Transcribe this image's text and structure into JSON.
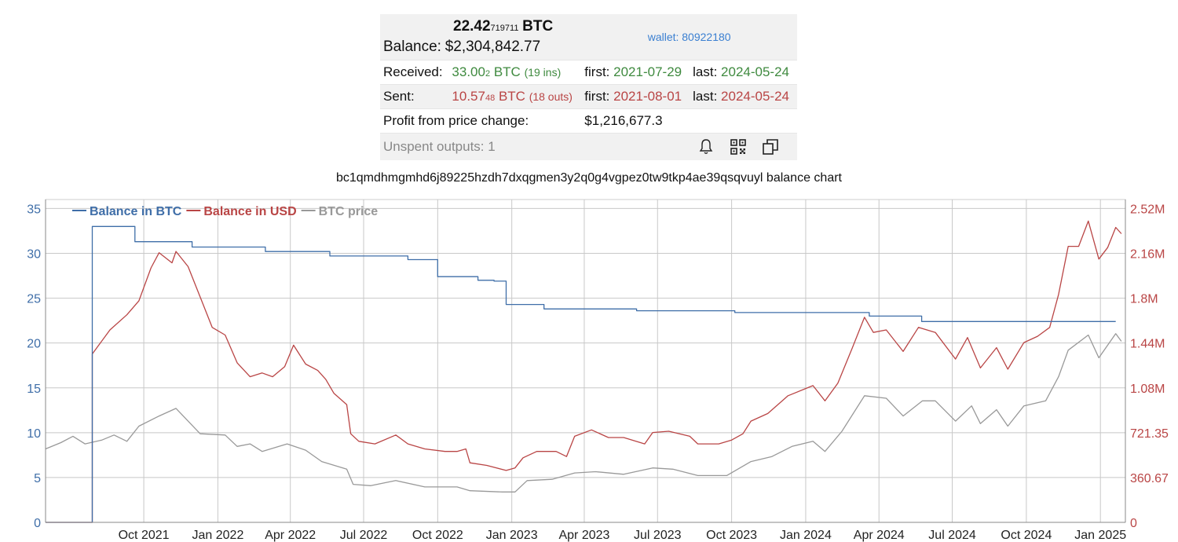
{
  "wallet_info": {
    "balance_btc_main": "22.42",
    "balance_btc_small": "719711",
    "balance_btc_unit": "BTC",
    "balance_label": "Balance:",
    "balance_usd": "$2,304,842.77",
    "wallet_link": "wallet: 80922180",
    "received": {
      "label": "Received:",
      "amount_main": "33.00",
      "amount_small": "2",
      "unit": "BTC",
      "count": "(19 ins)",
      "first_label": "first:",
      "first_date": "2021-07-29",
      "last_label": "last:",
      "last_date": "2024-05-24"
    },
    "sent": {
      "label": "Sent:",
      "amount_main": "10.57",
      "amount_small": "48",
      "unit": "BTC",
      "count": "(18 outs)",
      "first_label": "first:",
      "first_date": "2021-08-01",
      "last_label": "last:",
      "last_date": "2024-05-24"
    },
    "profit_label": "Profit from price change:",
    "profit_value": "$1,216,677.3",
    "unspent_label": "Unspent outputs: 1",
    "icons": [
      "bell-icon",
      "qr-code-icon",
      "copy-icon"
    ]
  },
  "chart_data": {
    "type": "line",
    "title": "bc1qmdhmgmhd6j89225hzdh7dxqgmen3y2q0g4vgpez0tw9tkp4ae39qsqvuyl balance chart",
    "x_range": [
      "2021-06-01",
      "2025-02-01"
    ],
    "x_ticks": [
      {
        "label": "Oct 2021",
        "date": "2021-10-01"
      },
      {
        "label": "Jan 2022",
        "date": "2022-01-01"
      },
      {
        "label": "Apr 2022",
        "date": "2022-04-01"
      },
      {
        "label": "Jul 2022",
        "date": "2022-07-01"
      },
      {
        "label": "Oct 2022",
        "date": "2022-10-01"
      },
      {
        "label": "Jan 2023",
        "date": "2023-01-01"
      },
      {
        "label": "Apr 2023",
        "date": "2023-04-01"
      },
      {
        "label": "Jul 2023",
        "date": "2023-07-01"
      },
      {
        "label": "Oct 2023",
        "date": "2023-10-01"
      },
      {
        "label": "Jan 2024",
        "date": "2024-01-01"
      },
      {
        "label": "Apr 2024",
        "date": "2024-04-01"
      },
      {
        "label": "Jul 2024",
        "date": "2024-07-01"
      },
      {
        "label": "Oct 2024",
        "date": "2024-10-01"
      },
      {
        "label": "Jan 2025",
        "date": "2025-01-01"
      }
    ],
    "y_left": {
      "ylim": [
        0,
        36
      ],
      "ticks": [
        "0",
        "5",
        "10",
        "15",
        "20",
        "25",
        "30",
        "35"
      ]
    },
    "y_right": {
      "ylim": [
        0,
        2550000
      ],
      "ticks": [
        "0",
        "360.67",
        "721.35",
        "1.08M",
        "1.44M",
        "1.8M",
        "2.16M",
        "2.52M"
      ]
    },
    "grid": true,
    "legend_position": "top-left",
    "series": [
      {
        "name": "Balance in BTC",
        "axis": "left",
        "color": "#3f6ea8",
        "points": [
          [
            "2021-06-01",
            0
          ],
          [
            "2021-07-29",
            0
          ],
          [
            "2021-07-29",
            33.0
          ],
          [
            "2021-09-20",
            33.0
          ],
          [
            "2021-09-20",
            31.3
          ],
          [
            "2021-11-30",
            31.3
          ],
          [
            "2021-11-30",
            30.7
          ],
          [
            "2022-03-01",
            30.7
          ],
          [
            "2022-03-01",
            30.2
          ],
          [
            "2022-05-20",
            30.2
          ],
          [
            "2022-05-20",
            29.7
          ],
          [
            "2022-08-25",
            29.7
          ],
          [
            "2022-08-25",
            29.3
          ],
          [
            "2022-10-01",
            29.3
          ],
          [
            "2022-10-01",
            27.4
          ],
          [
            "2022-11-20",
            27.4
          ],
          [
            "2022-11-20",
            27.0
          ],
          [
            "2022-12-10",
            27.0
          ],
          [
            "2022-12-10",
            26.9
          ],
          [
            "2022-12-25",
            26.9
          ],
          [
            "2022-12-25",
            24.3
          ],
          [
            "2023-02-10",
            24.3
          ],
          [
            "2023-02-10",
            23.8
          ],
          [
            "2023-06-05",
            23.8
          ],
          [
            "2023-06-05",
            23.6
          ],
          [
            "2023-10-05",
            23.6
          ],
          [
            "2023-10-05",
            23.4
          ],
          [
            "2024-03-20",
            23.4
          ],
          [
            "2024-03-20",
            23.0
          ],
          [
            "2024-05-24",
            23.0
          ],
          [
            "2024-05-24",
            22.4
          ],
          [
            "2025-01-20",
            22.4
          ]
        ]
      },
      {
        "name": "Balance in USD",
        "axis": "right",
        "color": "#b94545",
        "points": [
          [
            "2021-06-01",
            0
          ],
          [
            "2021-07-29",
            0
          ],
          [
            "2021-07-29",
            1330000
          ],
          [
            "2021-08-20",
            1520000
          ],
          [
            "2021-09-10",
            1640000
          ],
          [
            "2021-09-25",
            1750000
          ],
          [
            "2021-10-10",
            2010000
          ],
          [
            "2021-10-20",
            2130000
          ],
          [
            "2021-11-05",
            2050000
          ],
          [
            "2021-11-10",
            2140000
          ],
          [
            "2021-11-25",
            2020000
          ],
          [
            "2021-12-10",
            1780000
          ],
          [
            "2021-12-25",
            1540000
          ],
          [
            "2022-01-10",
            1480000
          ],
          [
            "2022-01-25",
            1260000
          ],
          [
            "2022-02-10",
            1150000
          ],
          [
            "2022-02-25",
            1180000
          ],
          [
            "2022-03-10",
            1150000
          ],
          [
            "2022-03-25",
            1230000
          ],
          [
            "2022-04-05",
            1400000
          ],
          [
            "2022-04-20",
            1250000
          ],
          [
            "2022-05-05",
            1200000
          ],
          [
            "2022-05-15",
            1130000
          ],
          [
            "2022-05-25",
            1020000
          ],
          [
            "2022-06-10",
            930000
          ],
          [
            "2022-06-15",
            700000
          ],
          [
            "2022-06-25",
            640000
          ],
          [
            "2022-07-15",
            620000
          ],
          [
            "2022-08-10",
            690000
          ],
          [
            "2022-08-25",
            620000
          ],
          [
            "2022-09-15",
            580000
          ],
          [
            "2022-10-10",
            560000
          ],
          [
            "2022-10-25",
            560000
          ],
          [
            "2022-11-05",
            580000
          ],
          [
            "2022-11-10",
            470000
          ],
          [
            "2022-12-01",
            450000
          ],
          [
            "2022-12-25",
            410000
          ],
          [
            "2023-01-05",
            430000
          ],
          [
            "2023-01-15",
            510000
          ],
          [
            "2023-02-01",
            560000
          ],
          [
            "2023-02-25",
            560000
          ],
          [
            "2023-03-10",
            520000
          ],
          [
            "2023-03-20",
            680000
          ],
          [
            "2023-04-10",
            730000
          ],
          [
            "2023-05-01",
            670000
          ],
          [
            "2023-05-20",
            670000
          ],
          [
            "2023-06-15",
            620000
          ],
          [
            "2023-06-25",
            710000
          ],
          [
            "2023-07-15",
            720000
          ],
          [
            "2023-08-10",
            680000
          ],
          [
            "2023-08-20",
            620000
          ],
          [
            "2023-09-15",
            620000
          ],
          [
            "2023-10-01",
            650000
          ],
          [
            "2023-10-15",
            700000
          ],
          [
            "2023-10-25",
            800000
          ],
          [
            "2023-11-15",
            860000
          ],
          [
            "2023-12-10",
            1000000
          ],
          [
            "2024-01-10",
            1080000
          ],
          [
            "2024-01-25",
            960000
          ],
          [
            "2024-02-10",
            1100000
          ],
          [
            "2024-02-28",
            1380000
          ],
          [
            "2024-03-14",
            1620000
          ],
          [
            "2024-03-25",
            1500000
          ],
          [
            "2024-04-10",
            1520000
          ],
          [
            "2024-05-01",
            1350000
          ],
          [
            "2024-05-20",
            1540000
          ],
          [
            "2024-06-10",
            1500000
          ],
          [
            "2024-07-05",
            1290000
          ],
          [
            "2024-07-20",
            1460000
          ],
          [
            "2024-08-05",
            1220000
          ],
          [
            "2024-08-25",
            1380000
          ],
          [
            "2024-09-08",
            1210000
          ],
          [
            "2024-09-28",
            1420000
          ],
          [
            "2024-10-15",
            1470000
          ],
          [
            "2024-10-30",
            1540000
          ],
          [
            "2024-11-10",
            1800000
          ],
          [
            "2024-11-22",
            2180000
          ],
          [
            "2024-12-05",
            2180000
          ],
          [
            "2024-12-17",
            2380000
          ],
          [
            "2024-12-30",
            2080000
          ],
          [
            "2025-01-10",
            2170000
          ],
          [
            "2025-01-20",
            2330000
          ],
          [
            "2025-01-27",
            2280000
          ]
        ]
      },
      {
        "name": "BTC price",
        "axis": "right",
        "color": "#999999",
        "points": [
          [
            "2021-06-01",
            580000
          ],
          [
            "2021-06-20",
            630000
          ],
          [
            "2021-07-05",
            680000
          ],
          [
            "2021-07-20",
            620000
          ],
          [
            "2021-08-10",
            650000
          ],
          [
            "2021-08-25",
            690000
          ],
          [
            "2021-09-10",
            640000
          ],
          [
            "2021-09-25",
            760000
          ],
          [
            "2021-10-20",
            840000
          ],
          [
            "2021-11-10",
            900000
          ],
          [
            "2021-11-25",
            800000
          ],
          [
            "2021-12-10",
            700000
          ],
          [
            "2022-01-10",
            690000
          ],
          [
            "2022-01-25",
            600000
          ],
          [
            "2022-02-10",
            620000
          ],
          [
            "2022-02-25",
            560000
          ],
          [
            "2022-03-28",
            620000
          ],
          [
            "2022-04-20",
            570000
          ],
          [
            "2022-05-10",
            480000
          ],
          [
            "2022-06-10",
            420000
          ],
          [
            "2022-06-18",
            300000
          ],
          [
            "2022-07-10",
            290000
          ],
          [
            "2022-08-10",
            330000
          ],
          [
            "2022-09-15",
            280000
          ],
          [
            "2022-10-25",
            280000
          ],
          [
            "2022-11-10",
            250000
          ],
          [
            "2022-12-20",
            240000
          ],
          [
            "2023-01-05",
            240000
          ],
          [
            "2023-01-20",
            330000
          ],
          [
            "2023-02-20",
            340000
          ],
          [
            "2023-03-20",
            390000
          ],
          [
            "2023-04-15",
            400000
          ],
          [
            "2023-05-20",
            380000
          ],
          [
            "2023-06-25",
            430000
          ],
          [
            "2023-07-20",
            420000
          ],
          [
            "2023-08-20",
            370000
          ],
          [
            "2023-09-25",
            370000
          ],
          [
            "2023-10-25",
            480000
          ],
          [
            "2023-11-20",
            520000
          ],
          [
            "2023-12-15",
            600000
          ],
          [
            "2024-01-10",
            640000
          ],
          [
            "2024-01-25",
            560000
          ],
          [
            "2024-02-15",
            720000
          ],
          [
            "2024-03-14",
            1000000
          ],
          [
            "2024-04-10",
            980000
          ],
          [
            "2024-05-01",
            840000
          ],
          [
            "2024-05-25",
            960000
          ],
          [
            "2024-06-10",
            960000
          ],
          [
            "2024-07-05",
            800000
          ],
          [
            "2024-07-25",
            920000
          ],
          [
            "2024-08-05",
            780000
          ],
          [
            "2024-08-25",
            890000
          ],
          [
            "2024-09-08",
            760000
          ],
          [
            "2024-09-28",
            920000
          ],
          [
            "2024-10-25",
            960000
          ],
          [
            "2024-11-10",
            1150000
          ],
          [
            "2024-11-22",
            1360000
          ],
          [
            "2024-12-17",
            1480000
          ],
          [
            "2024-12-30",
            1300000
          ],
          [
            "2025-01-20",
            1490000
          ],
          [
            "2025-01-27",
            1430000
          ]
        ]
      }
    ]
  }
}
